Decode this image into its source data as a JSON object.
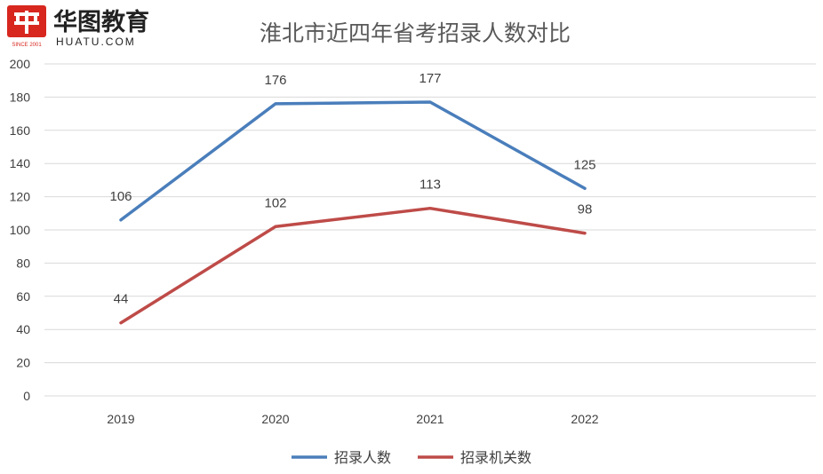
{
  "logo": {
    "brand_cn": "华图教育",
    "brand_en": "HUATU.COM",
    "since": "SINCE 2001",
    "icon": "huatu-logo-icon",
    "brand_color": "#d7271f"
  },
  "chart_data": {
    "type": "line",
    "title": "淮北市近四年省考招录人数对比",
    "xlabel": "",
    "ylabel": "",
    "categories": [
      "2019",
      "2020",
      "2021",
      "2022"
    ],
    "ylim": [
      0,
      200
    ],
    "yticks": [
      "0",
      "20",
      "40",
      "60",
      "80",
      "100",
      "120",
      "140",
      "160",
      "180",
      "200"
    ],
    "grid": true,
    "legend_position": "bottom",
    "series": [
      {
        "name": "招录人数",
        "values": [
          106,
          176,
          177,
          125
        ],
        "color": "#4a7ebb"
      },
      {
        "name": "招录机关数",
        "values": [
          44,
          102,
          113,
          98
        ],
        "color": "#be4b48"
      }
    ]
  }
}
